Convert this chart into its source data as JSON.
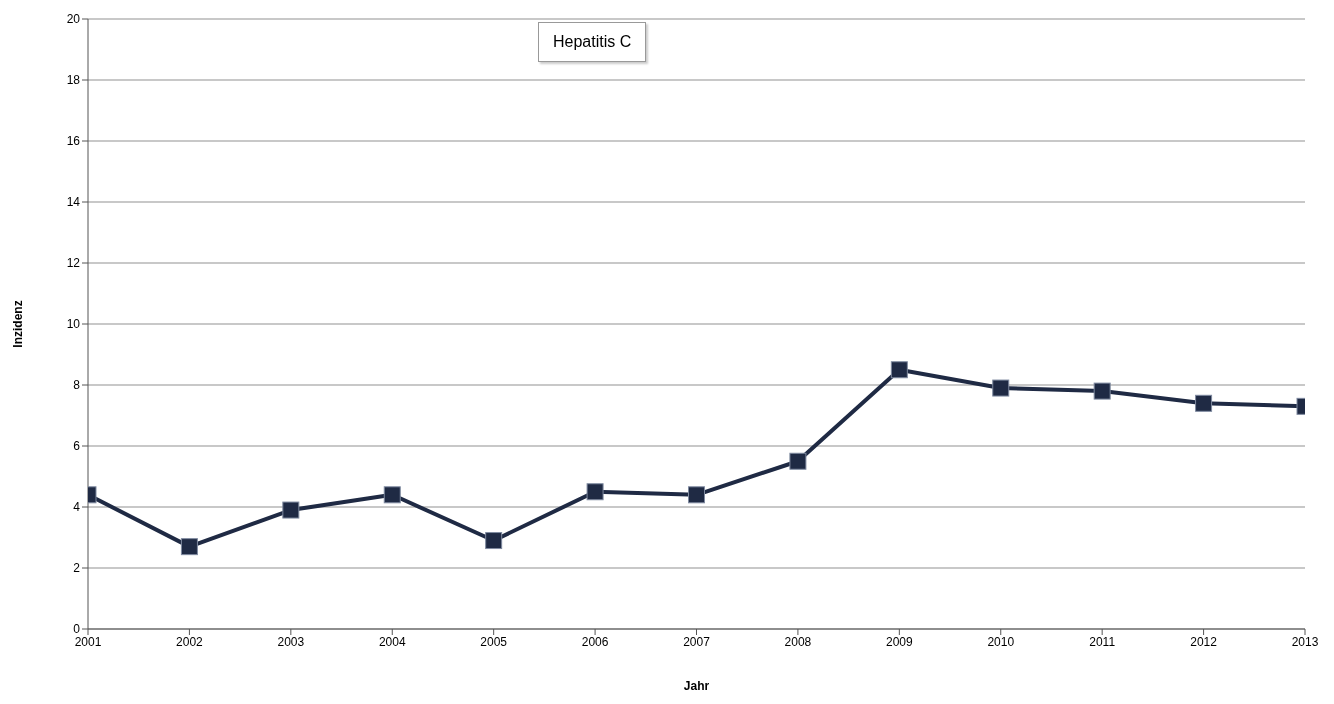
{
  "chart_data": {
    "type": "line",
    "title": "Hepatitis C",
    "xlabel": "Jahr",
    "ylabel": "Inzidenz",
    "x": [
      2001,
      2002,
      2003,
      2004,
      2005,
      2006,
      2007,
      2008,
      2009,
      2010,
      2011,
      2012,
      2013
    ],
    "series": [
      {
        "color": "#1f2a44",
        "values": [
          4.4,
          2.7,
          3.9,
          4.4,
          2.9,
          4.5,
          4.4,
          5.5,
          8.5,
          7.9,
          7.8,
          7.4,
          7.3
        ]
      }
    ],
    "xlim": [
      2001,
      2013
    ],
    "xticks": [
      2001,
      2002,
      2003,
      2004,
      2005,
      2006,
      2007,
      2008,
      2009,
      2010,
      2011,
      2012,
      2013
    ],
    "ylim": [
      0,
      20
    ],
    "yticks": [
      0,
      2,
      4,
      6,
      8,
      10,
      12,
      14,
      16,
      18,
      20
    ],
    "grid": "y",
    "marker": "square",
    "line_style": "solid",
    "legend": false
  }
}
